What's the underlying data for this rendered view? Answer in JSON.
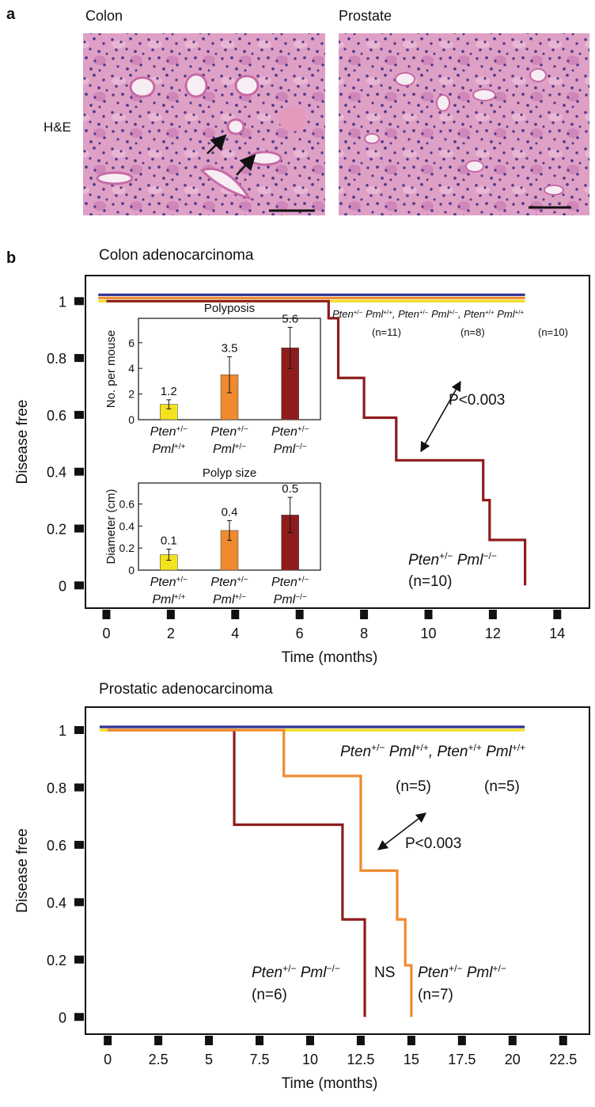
{
  "panel_a": {
    "label": "a",
    "images": [
      {
        "title": "Colon",
        "row_label": "H&E"
      },
      {
        "title": "Prostate"
      }
    ]
  },
  "panel_b": {
    "label": "b"
  },
  "chart_data": [
    {
      "type": "step",
      "title": "Colon adenocarcinoma",
      "xlabel": "Time (months)",
      "ylabel": "Disease free",
      "xlim": [
        -0.65,
        15
      ],
      "ylim": [
        -0.08,
        1.09
      ],
      "xticks": [
        0,
        2,
        4,
        6,
        8,
        10,
        12,
        14
      ],
      "yticks": [
        0,
        0.2,
        0.4,
        0.6,
        0.8,
        1
      ],
      "series": [
        {
          "color": "#f3de1c",
          "x": [
            -0.25,
            13
          ],
          "values": [
            1,
            1
          ]
        },
        {
          "color": "#ef8a2e",
          "x": [
            -0.25,
            13
          ],
          "values": [
            1,
            1
          ]
        },
        {
          "color": "#2e3192",
          "x": [
            -0.25,
            13
          ],
          "values": [
            1,
            1
          ]
        },
        {
          "color": "#8e1c1c",
          "x": [
            0,
            6.9,
            7.2,
            8,
            9,
            11.7,
            11.9,
            13
          ],
          "values": [
            1,
            0.94,
            0.73,
            0.59,
            0.44,
            0.3,
            0.16,
            0
          ]
        }
      ],
      "annotations": [
        {
          "text": [
            "Pten",
            "+/−",
            " Pml",
            "+/+",
            ", Pten",
            "+/−",
            " Pml",
            "+/−",
            ", Pten",
            "+/+",
            " Pml",
            "+/+"
          ]
        },
        {
          "text": [
            "(n=11)"
          ]
        },
        {
          "text": [
            "(n=8)"
          ]
        },
        {
          "text": [
            "(n=10)"
          ]
        },
        {
          "text": [
            "P<0.003"
          ]
        },
        {
          "text": [
            "Pten",
            "+/−",
            " Pml",
            "−/−"
          ]
        },
        {
          "text": [
            "(n=10)"
          ]
        }
      ]
    },
    {
      "type": "bar",
      "title": "Polyposis",
      "ylabel": "No. per mouse",
      "categories": [
        [
          [
            "Pten",
            "+/−"
          ],
          [
            "Pml",
            "+/+"
          ]
        ],
        [
          [
            "Pten",
            "+/−"
          ],
          [
            "Pml",
            "+/−"
          ]
        ],
        [
          [
            "Pten",
            "+/−"
          ],
          [
            "Pml",
            "−/−"
          ]
        ]
      ],
      "values": [
        1.2,
        3.5,
        5.6
      ],
      "errors": [
        0.35,
        1.4,
        1.6
      ],
      "colors": [
        "#f3e21c",
        "#ef8a2e",
        "#8e1c1c"
      ],
      "ylim": [
        0,
        7.9
      ],
      "yticks": [
        0,
        2,
        4,
        6
      ]
    },
    {
      "type": "bar",
      "title": "Polyp size",
      "ylabel": "Diameter (cm)",
      "categories": [
        [
          [
            "Pten",
            "+/−"
          ],
          [
            "Pml",
            "+/+"
          ]
        ],
        [
          [
            "Pten",
            "+/−"
          ],
          [
            "Pml",
            "+/−"
          ]
        ],
        [
          [
            "Pten",
            "+/−"
          ],
          [
            "Pml",
            "−/−"
          ]
        ]
      ],
      "values": [
        0.14,
        0.36,
        0.5
      ],
      "value_labels": [
        "0.1",
        "0.4",
        "0.5"
      ],
      "errors": [
        0.05,
        0.09,
        0.16
      ],
      "colors": [
        "#f3e21c",
        "#ef8a2e",
        "#8e1c1c"
      ],
      "ylim": [
        0,
        0.79
      ],
      "yticks": [
        0,
        0.2,
        0.4,
        0.6
      ]
    },
    {
      "type": "step",
      "title": "Prostatic adenocarcinoma",
      "xlabel": "Time (months)",
      "ylabel": "Disease free",
      "xlim": [
        -1.1,
        23.8
      ],
      "ylim": [
        -0.06,
        1.08
      ],
      "xticks": [
        0,
        2.5,
        5,
        7.5,
        10,
        12.5,
        15,
        17.5,
        20,
        22.5
      ],
      "yticks": [
        0,
        0.2,
        0.4,
        0.6,
        0.8,
        1
      ],
      "series": [
        {
          "color": "#f3de1c",
          "x": [
            -0.4,
            20.6
          ],
          "values": [
            1,
            1
          ]
        },
        {
          "color": "#2e3192",
          "x": [
            -0.4,
            20.6
          ],
          "values": [
            1,
            1
          ]
        },
        {
          "color": "#8e1c1c",
          "x": [
            0,
            6.25,
            11.6,
            12.7
          ],
          "values": [
            1,
            0.67,
            0.34,
            0
          ]
        },
        {
          "color": "#ef8a2e",
          "x": [
            0,
            8.7,
            12.5,
            14.3,
            14.7,
            15
          ],
          "values": [
            1,
            0.84,
            0.51,
            0.34,
            0.18,
            0
          ]
        }
      ],
      "annotations": [
        {
          "text": [
            "Pten",
            "+/−",
            " Pml",
            "+/+",
            ", Pten",
            "+/+",
            " Pml",
            "+/+"
          ]
        },
        {
          "text": [
            "(n=5)"
          ]
        },
        {
          "text": [
            "(n=5)"
          ]
        },
        {
          "text": [
            "P<0.003"
          ]
        },
        {
          "text": [
            "Pten",
            "+/−",
            " Pml",
            "−/−"
          ]
        },
        {
          "text": [
            "(n=6)"
          ]
        },
        {
          "text": [
            "NS"
          ]
        },
        {
          "text": [
            "Pten",
            "+/−",
            " Pml",
            "+/−"
          ]
        },
        {
          "text": [
            "(n=7)"
          ]
        }
      ]
    }
  ]
}
